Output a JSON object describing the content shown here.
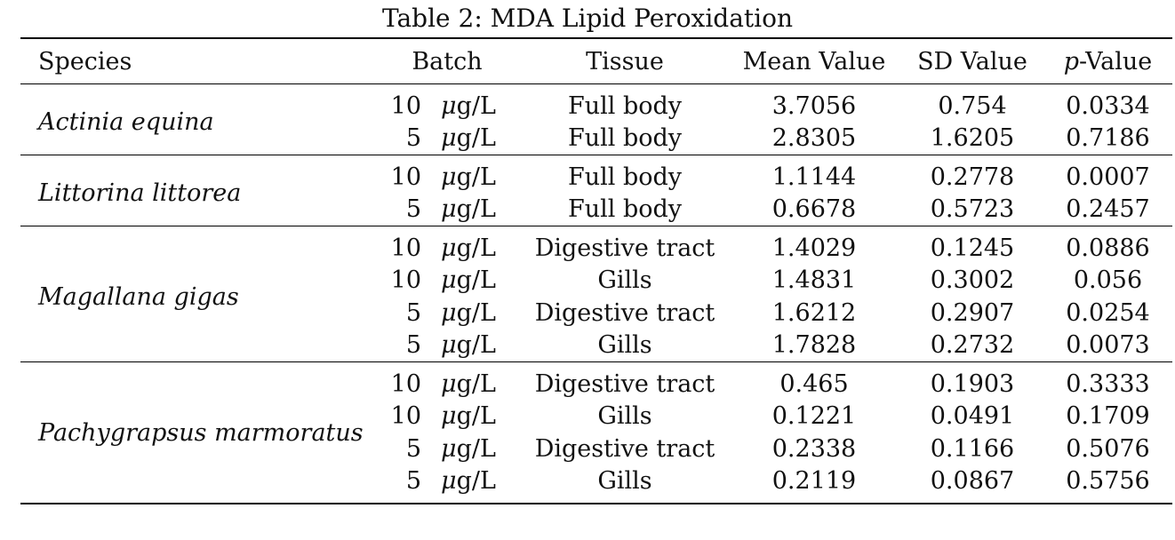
{
  "caption": "Table 2: MDA Lipid Peroxidation",
  "headers": {
    "species": "Species",
    "batch": "Batch",
    "tissue": "Tissue",
    "mean": "Mean Value",
    "sd": "SD Value",
    "p_italic": "p",
    "p_rest": "-Value"
  },
  "unit": {
    "mu": "μ",
    "rest": "g/L"
  },
  "groups": [
    {
      "species": "Actinia equina",
      "rows": [
        {
          "batch": "10",
          "tissue": "Full body",
          "mean": "3.7056",
          "sd": "0.754",
          "p": "0.0334"
        },
        {
          "batch": "5",
          "tissue": "Full body",
          "mean": "2.8305",
          "sd": "1.6205",
          "p": "0.7186"
        }
      ]
    },
    {
      "species": "Littorina littorea",
      "rows": [
        {
          "batch": "10",
          "tissue": "Full body",
          "mean": "1.1144",
          "sd": "0.2778",
          "p": "0.0007"
        },
        {
          "batch": "5",
          "tissue": "Full body",
          "mean": "0.6678",
          "sd": "0.5723",
          "p": "0.2457"
        }
      ]
    },
    {
      "species": "Magallana gigas",
      "rows": [
        {
          "batch": "10",
          "tissue": "Digestive tract",
          "mean": "1.4029",
          "sd": "0.1245",
          "p": "0.0886"
        },
        {
          "batch": "10",
          "tissue": "Gills",
          "mean": "1.4831",
          "sd": "0.3002",
          "p": "0.056"
        },
        {
          "batch": "5",
          "tissue": "Digestive tract",
          "mean": "1.6212",
          "sd": "0.2907",
          "p": "0.0254"
        },
        {
          "batch": "5",
          "tissue": "Gills",
          "mean": "1.7828",
          "sd": "0.2732",
          "p": "0.0073"
        }
      ]
    },
    {
      "species": "Pachygrapsus marmoratus",
      "rows": [
        {
          "batch": "10",
          "tissue": "Digestive tract",
          "mean": "0.465",
          "sd": "0.1903",
          "p": "0.3333"
        },
        {
          "batch": "10",
          "tissue": "Gills",
          "mean": "0.1221",
          "sd": "0.0491",
          "p": "0.1709"
        },
        {
          "batch": "5",
          "tissue": "Digestive tract",
          "mean": "0.2338",
          "sd": "0.1166",
          "p": "0.5076"
        },
        {
          "batch": "5",
          "tissue": "Gills",
          "mean": "0.2119",
          "sd": "0.0867",
          "p": "0.5756"
        }
      ]
    }
  ]
}
